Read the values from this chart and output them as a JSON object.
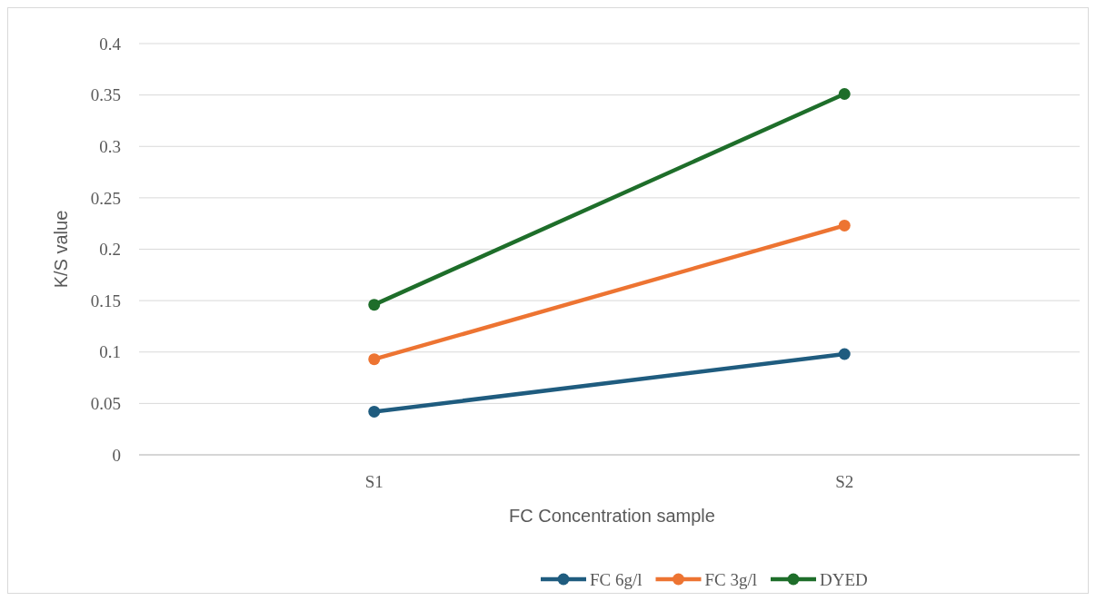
{
  "chart_data": {
    "type": "line",
    "xlabel": "FC Concentration sample",
    "ylabel": "K/S value",
    "categories": [
      "S1",
      "S2"
    ],
    "series": [
      {
        "name": "FC 6g/l",
        "color": "#1f5c7f",
        "values": [
          0.042,
          0.098
        ]
      },
      {
        "name": "FC 3g/l",
        "color": "#ed7432",
        "values": [
          0.093,
          0.223
        ]
      },
      {
        "name": "DYED",
        "color": "#1e6e2a",
        "values": [
          0.146,
          0.351
        ]
      }
    ],
    "ylim": [
      0,
      0.4
    ],
    "yticks": [
      0,
      0.05,
      0.1,
      0.15,
      0.2,
      0.25,
      0.3,
      0.35,
      0.4
    ],
    "grid": "y",
    "legend": "bottom",
    "marker": "circle",
    "line_style": "solid"
  }
}
